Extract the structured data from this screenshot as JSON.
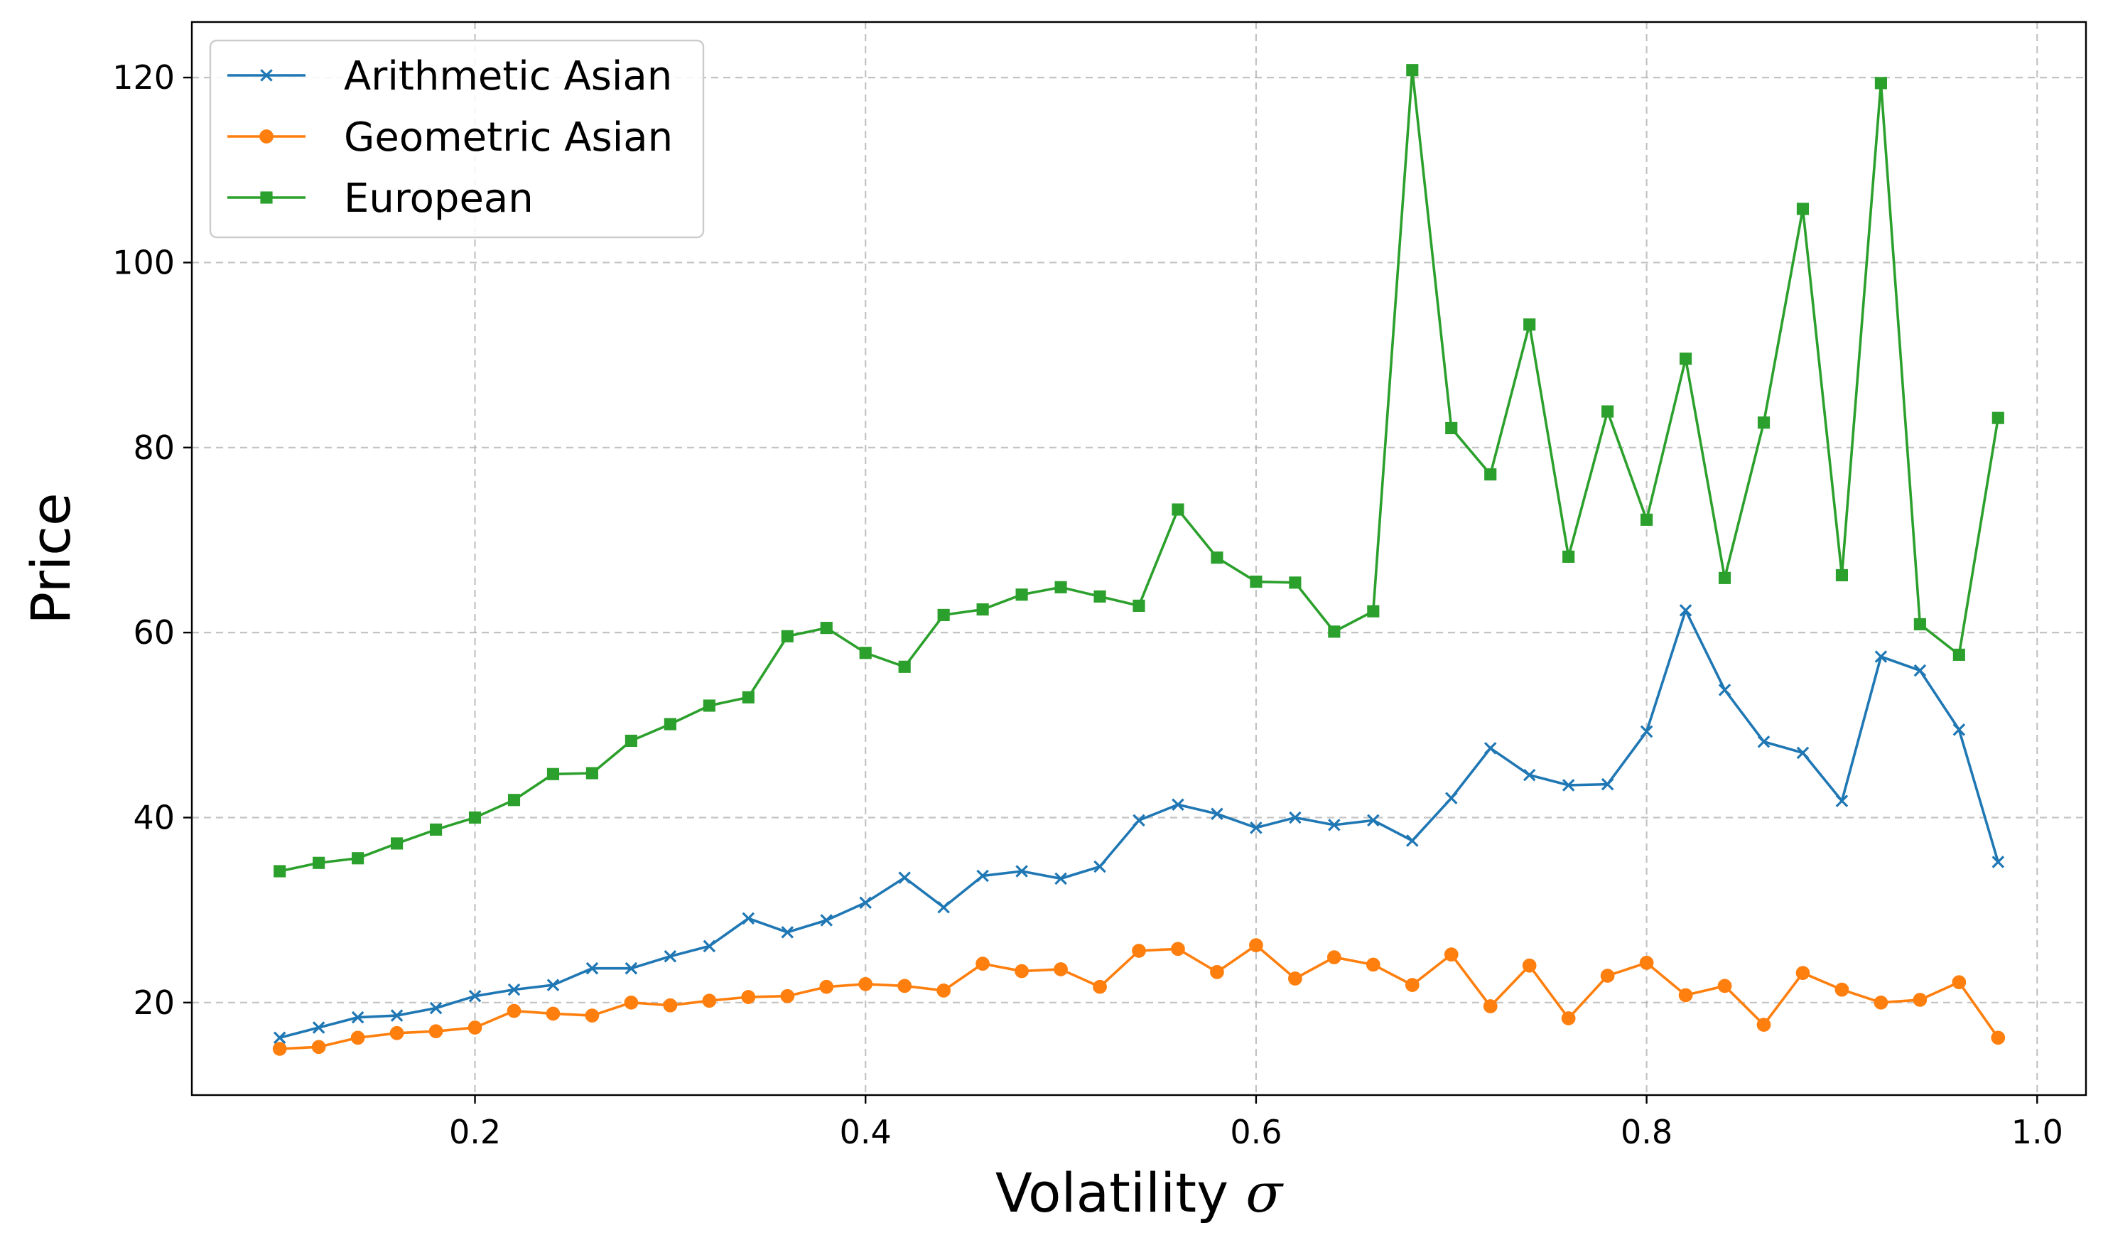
{
  "chart_data": {
    "type": "line",
    "title": "",
    "xlabel": "Volatility",
    "xlabel_symbol": "σ",
    "ylabel": "Price",
    "xlim": [
      0.055,
      1.025
    ],
    "ylim": [
      10,
      126
    ],
    "grid": true,
    "legend_position": "top-left",
    "xticks": [
      0.2,
      0.4,
      0.6,
      0.8,
      1.0
    ],
    "xtick_labels": [
      "0.2",
      "0.4",
      "0.6",
      "0.8",
      "1.0"
    ],
    "yticks": [
      20,
      40,
      60,
      80,
      100,
      120
    ],
    "ytick_labels": [
      "20",
      "40",
      "60",
      "80",
      "100",
      "120"
    ],
    "x": [
      0.1,
      0.12,
      0.14,
      0.16,
      0.18,
      0.2,
      0.22,
      0.24,
      0.26,
      0.28,
      0.3,
      0.32,
      0.34,
      0.36,
      0.38,
      0.4,
      0.42,
      0.44,
      0.46,
      0.48,
      0.5,
      0.52,
      0.54,
      0.56,
      0.58,
      0.6,
      0.62,
      0.64,
      0.66,
      0.68,
      0.7,
      0.72,
      0.74,
      0.76,
      0.78,
      0.8,
      0.82,
      0.84,
      0.86,
      0.88,
      0.9,
      0.92,
      0.94,
      0.96,
      0.98
    ],
    "series": [
      {
        "name": "Arithmetic Asian",
        "color": "#1f77b4",
        "marker": "x",
        "values": [
          16.2,
          17.3,
          18.4,
          18.6,
          19.4,
          20.7,
          21.4,
          21.9,
          23.7,
          23.7,
          25.0,
          26.1,
          29.1,
          27.6,
          28.9,
          30.8,
          33.5,
          30.3,
          33.7,
          34.2,
          33.4,
          34.7,
          39.7,
          41.4,
          40.4,
          38.9,
          40.0,
          39.2,
          39.7,
          37.5,
          42.1,
          47.5,
          44.6,
          43.5,
          43.6,
          49.3,
          62.4,
          53.8,
          48.2,
          47.0,
          41.8,
          57.4,
          55.9,
          49.5,
          35.2
        ]
      },
      {
        "name": "Geometric Asian",
        "color": "#ff7f0e",
        "marker": "circle",
        "values": [
          15.0,
          15.2,
          16.2,
          16.7,
          16.9,
          17.3,
          19.1,
          18.8,
          18.6,
          20.0,
          19.7,
          20.2,
          20.6,
          20.7,
          21.7,
          22.0,
          21.8,
          21.3,
          24.2,
          23.4,
          23.6,
          21.7,
          25.6,
          25.8,
          23.3,
          26.2,
          22.6,
          24.9,
          24.1,
          21.9,
          25.2,
          19.6,
          24.0,
          18.3,
          22.9,
          24.3,
          20.8,
          21.8,
          17.6,
          23.2,
          21.4,
          20.0,
          20.3,
          22.2,
          16.2
        ]
      },
      {
        "name": "European",
        "color": "#2ca02c",
        "marker": "square",
        "values": [
          34.2,
          35.1,
          35.6,
          37.2,
          38.7,
          40.0,
          41.9,
          44.7,
          44.8,
          48.3,
          50.1,
          52.1,
          53.0,
          59.6,
          60.5,
          57.8,
          56.3,
          61.9,
          62.5,
          64.1,
          64.9,
          63.9,
          62.9,
          73.3,
          68.1,
          65.5,
          65.4,
          60.1,
          62.3,
          120.8,
          82.1,
          77.1,
          93.3,
          68.2,
          83.9,
          72.2,
          89.6,
          65.9,
          82.7,
          105.8,
          66.2,
          119.4,
          60.9,
          57.6,
          83.2
        ]
      }
    ]
  }
}
